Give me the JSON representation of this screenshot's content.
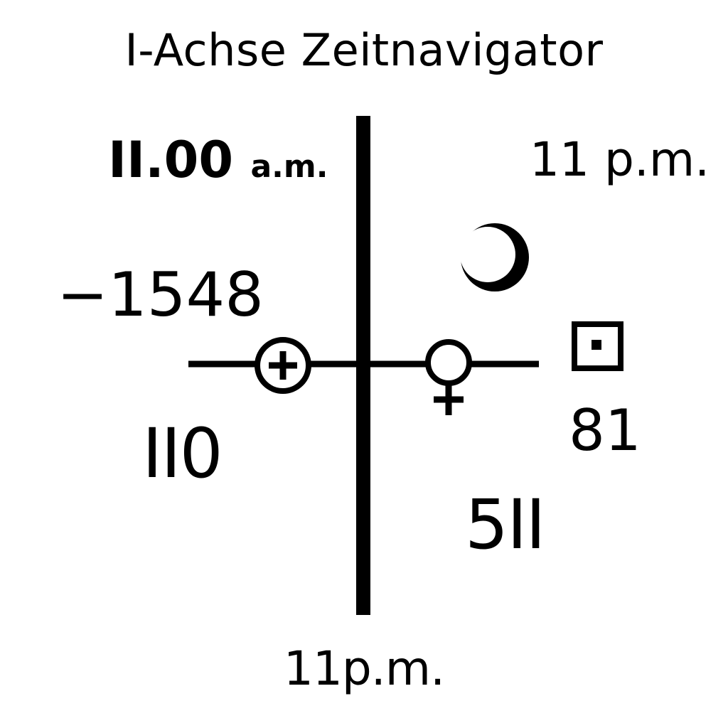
{
  "title": "I-Achse Zeitnavigator",
  "labels": {
    "top_left_time": "II.00",
    "top_left_suffix": "a.m.",
    "top_right_time": "11 p.m.",
    "negative_year": "−1548",
    "left_lower": "II0",
    "right_number": "81",
    "right_lower": "5II",
    "bottom_time": "11p.m."
  },
  "symbols": [
    "circled-plus-icon",
    "venus-icon",
    "crescent-moon-icon",
    "boxed-dot-icon"
  ],
  "colors": {
    "ink": "#000000",
    "background": "#ffffff"
  }
}
